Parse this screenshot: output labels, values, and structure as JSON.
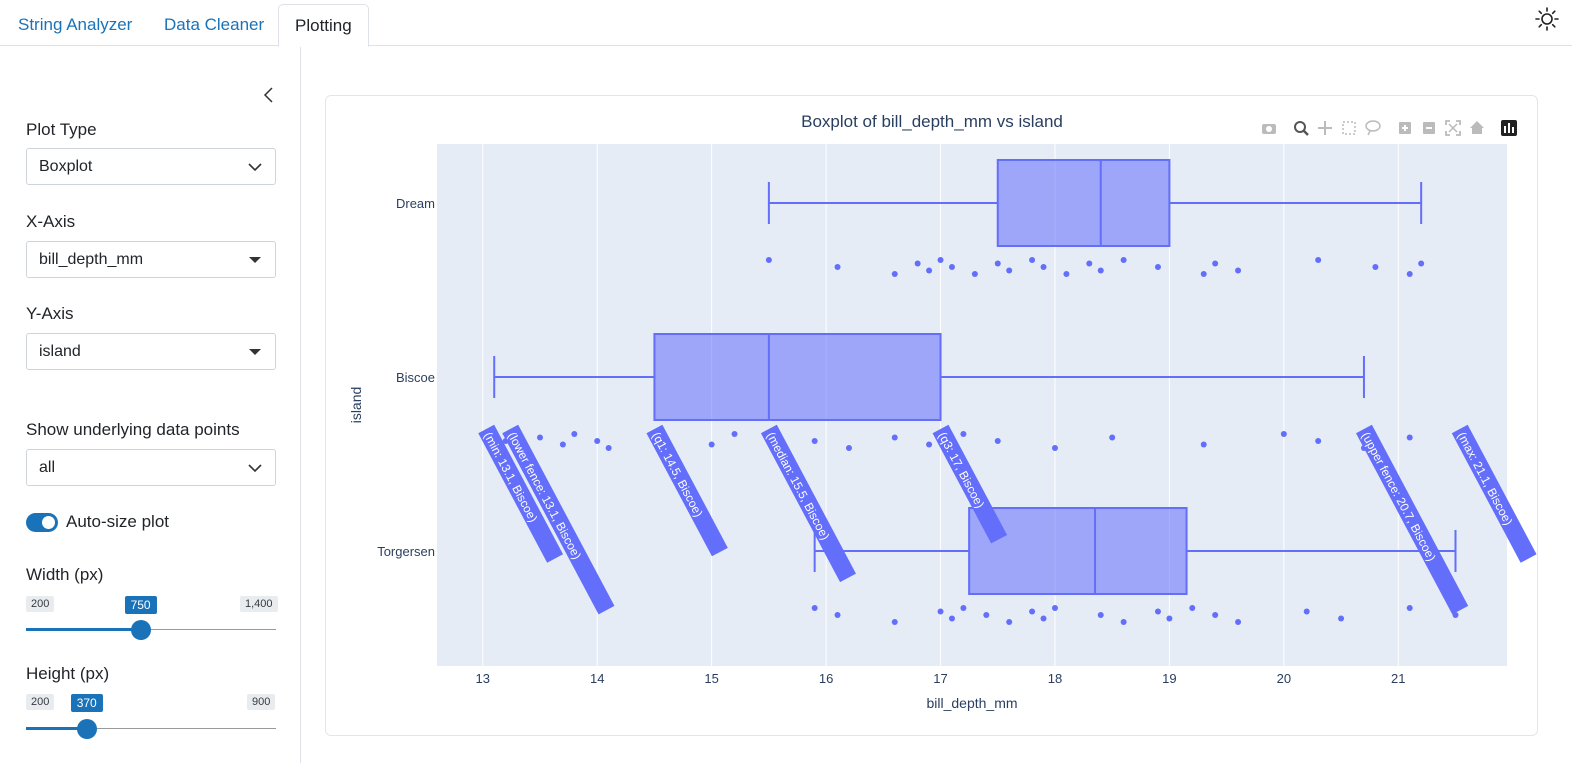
{
  "tabs": [
    {
      "label": "String Analyzer",
      "active": false
    },
    {
      "label": "Data Cleaner",
      "active": false
    },
    {
      "label": "Plotting",
      "active": true
    }
  ],
  "sidebar": {
    "plot_type": {
      "label": "Plot Type",
      "value": "Boxplot"
    },
    "x_axis": {
      "label": "X-Axis",
      "value": "bill_depth_mm"
    },
    "y_axis": {
      "label": "Y-Axis",
      "value": "island"
    },
    "points": {
      "label": "Show underlying data points",
      "value": "all"
    },
    "autosize": {
      "label": "Auto-size plot",
      "on": true
    },
    "width": {
      "label": "Width (px)",
      "min": "200",
      "max": "1,400",
      "value": "750",
      "min_num": 200,
      "max_num": 1400,
      "value_num": 750
    },
    "height": {
      "label": "Height (px)",
      "min": "200",
      "max": "900",
      "value": "370",
      "min_num": 200,
      "max_num": 900,
      "value_num": 370
    }
  },
  "colors": {
    "accent": "#1a73b8",
    "box": "#636efa",
    "plot_bg": "#e5ecf6"
  },
  "chart_data": {
    "type": "boxplot",
    "title": "Boxplot of bill_depth_mm vs island",
    "xlabel": "bill_depth_mm",
    "ylabel": "island",
    "xlim": [
      12.6,
      21.95
    ],
    "xticks": [
      13,
      14,
      15,
      16,
      17,
      18,
      19,
      20,
      21
    ],
    "categories": [
      "Dream",
      "Biscoe",
      "Torgersen"
    ],
    "boxes": [
      {
        "category": "Dream",
        "min": 15.5,
        "q1": 17.5,
        "median": 18.4,
        "q3": 19.0,
        "max": 21.2
      },
      {
        "category": "Biscoe",
        "min": 13.1,
        "lower_fence": 13.1,
        "q1": 14.5,
        "median": 15.5,
        "q3": 17.0,
        "upper_fence": 20.7,
        "max": 21.1
      },
      {
        "category": "Torgersen",
        "min": 15.9,
        "q1": 17.25,
        "median": 18.35,
        "q3": 19.15,
        "max": 21.5
      }
    ],
    "hover_labels": [
      "(min: 13.1, Biscoe)",
      "(lower fence: 13.1, Biscoe)",
      "(q1: 14.5, Biscoe)",
      "(median: 15.5, Biscoe)",
      "(q3: 17, Biscoe)",
      "(upper fence: 20.7, Biscoe)",
      "(max: 21.1, Biscoe)"
    ],
    "points": {
      "Dream": [
        15.5,
        16.1,
        16.6,
        16.8,
        16.9,
        17.0,
        17.1,
        17.3,
        17.5,
        17.6,
        17.8,
        17.9,
        18.1,
        18.3,
        18.4,
        18.6,
        18.9,
        19.3,
        19.4,
        19.6,
        20.3,
        20.8,
        21.1,
        21.2
      ],
      "Biscoe": [
        13.1,
        13.2,
        13.3,
        13.5,
        13.7,
        13.8,
        14.0,
        14.1,
        14.5,
        15.0,
        15.2,
        15.9,
        16.2,
        16.6,
        16.9,
        17.2,
        17.5,
        18.0,
        18.5,
        19.3,
        20.0,
        20.3,
        20.7,
        21.1
      ],
      "Torgersen": [
        15.9,
        16.1,
        16.6,
        17.0,
        17.1,
        17.2,
        17.4,
        17.6,
        17.8,
        17.9,
        18.0,
        18.4,
        18.6,
        18.9,
        19.0,
        19.2,
        19.4,
        19.6,
        20.2,
        20.5,
        21.1,
        21.5
      ]
    },
    "toolbar": [
      "camera-icon",
      "zoom-icon",
      "pan-icon",
      "box-select-icon",
      "lasso-icon",
      "zoom-in-icon",
      "zoom-out-icon",
      "autoscale-icon",
      "reset-axes-icon",
      "plotly-logo-icon"
    ]
  }
}
